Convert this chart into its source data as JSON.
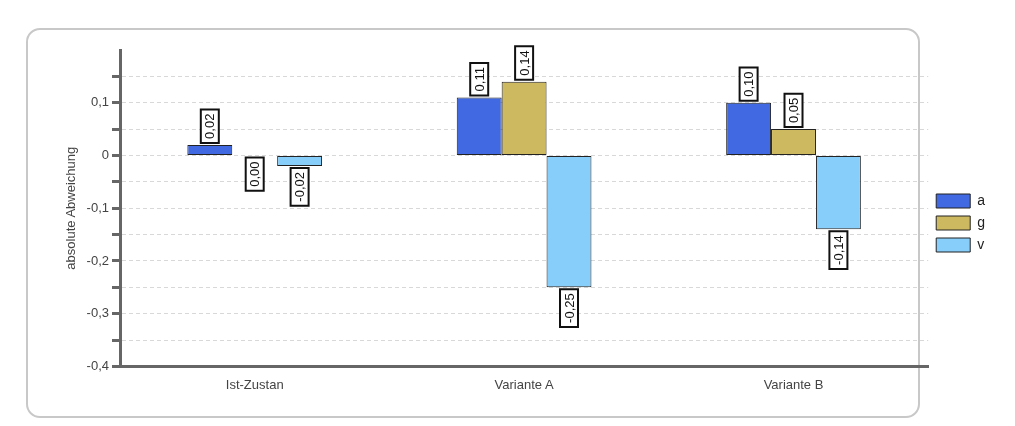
{
  "chart_data": {
    "type": "bar",
    "ylabel": "absolute Abweichung",
    "categories": [
      "Ist-Zustan",
      "Variante A",
      "Variante B"
    ],
    "series": [
      {
        "name": "a",
        "color": "#4169e1",
        "values": [
          0.02,
          0.11,
          0.1
        ],
        "value_labels": [
          "0,02",
          "0,11",
          "0,10"
        ]
      },
      {
        "name": "g",
        "color": "#cdb95f",
        "values": [
          0.0,
          0.14,
          0.05
        ],
        "value_labels": [
          "0,00",
          "0,14",
          "0,05"
        ]
      },
      {
        "name": "v",
        "color": "#87cefa",
        "values": [
          -0.02,
          -0.25,
          -0.14
        ],
        "value_labels": [
          "-0,02",
          "-0,25",
          "-0,14"
        ]
      }
    ],
    "ylim": [
      -0.4,
      0.2
    ],
    "yticks": [
      {
        "value": -0.4,
        "label": "-0,4"
      },
      {
        "value": -0.35,
        "label": null
      },
      {
        "value": -0.3,
        "label": "-0,3"
      },
      {
        "value": -0.25,
        "label": null
      },
      {
        "value": -0.2,
        "label": "-0,2"
      },
      {
        "value": -0.15,
        "label": null
      },
      {
        "value": -0.1,
        "label": "-0,1"
      },
      {
        "value": -0.05,
        "label": null
      },
      0,
      {
        "value": 0.05,
        "label": null
      },
      {
        "value": 0.1,
        "label": "0,1"
      },
      {
        "value": 0.15,
        "label": null
      }
    ],
    "grid": "y",
    "legend": "right"
  }
}
